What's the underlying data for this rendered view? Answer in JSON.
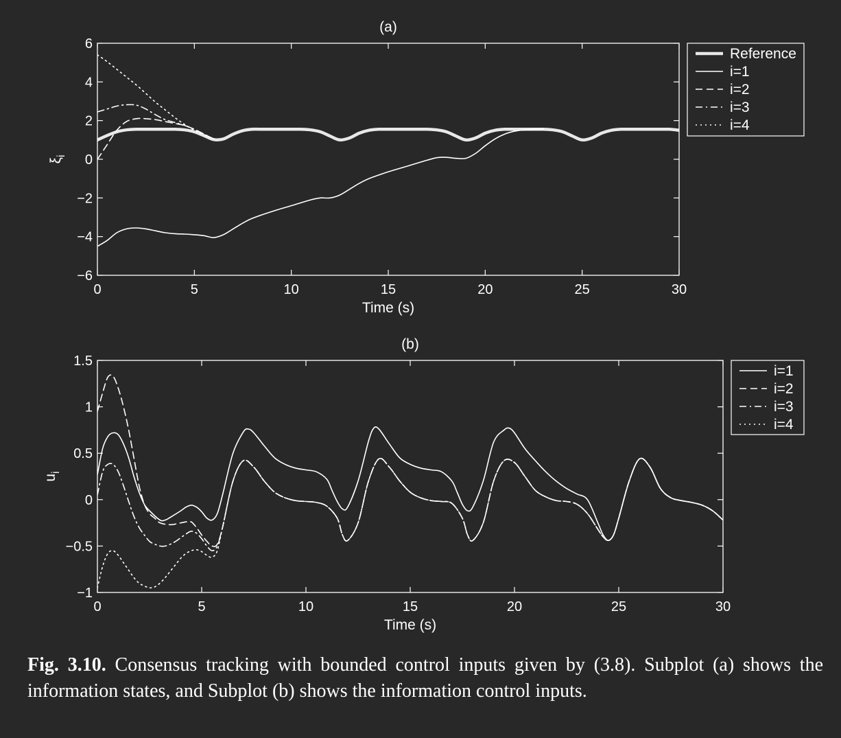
{
  "chart_data": [
    {
      "type": "line",
      "title": "(a)",
      "xlabel": "Time (s)",
      "ylabel": "ξ",
      "ylabel_sub": "i",
      "xlim": [
        0,
        30
      ],
      "ylim": [
        -6,
        6
      ],
      "xticks": [
        0,
        5,
        10,
        15,
        20,
        25,
        30
      ],
      "yticks": [
        -6,
        -4,
        -2,
        0,
        2,
        4,
        6
      ],
      "ytick_labels": [
        "−6",
        "−4",
        "−2",
        "0",
        "2",
        "4",
        "6"
      ],
      "grid": false,
      "legend": "top-right outside",
      "series": [
        {
          "name": "Reference",
          "style": "thick",
          "x": [
            0,
            0.5,
            1,
            1.5,
            2,
            2.5,
            3,
            3.5,
            4,
            4.5,
            5,
            5.5,
            6,
            6.5,
            7,
            7.5,
            8,
            8.5,
            9,
            9.5,
            10,
            10.5,
            11,
            11.5,
            12,
            12.5,
            13,
            13.5,
            14,
            14.5,
            15,
            15.5,
            16,
            16.5,
            17,
            17.5,
            18,
            18.5,
            19,
            19.5,
            20,
            20.5,
            21,
            21.5,
            22,
            22.5,
            23,
            23.5,
            24,
            24.5,
            25,
            25.5,
            26,
            26.5,
            27,
            27.5,
            28,
            28.5,
            29,
            29.5,
            30
          ],
          "y": [
            1.0,
            1.23,
            1.42,
            1.52,
            1.55,
            1.55,
            1.55,
            1.55,
            1.55,
            1.52,
            1.42,
            1.22,
            1.02,
            1.05,
            1.3,
            1.48,
            1.55,
            1.55,
            1.55,
            1.55,
            1.55,
            1.55,
            1.52,
            1.42,
            1.2,
            1.0,
            1.1,
            1.35,
            1.5,
            1.55,
            1.55,
            1.55,
            1.55,
            1.55,
            1.55,
            1.52,
            1.42,
            1.2,
            1.0,
            1.1,
            1.35,
            1.5,
            1.55,
            1.55,
            1.55,
            1.55,
            1.55,
            1.52,
            1.42,
            1.2,
            1.0,
            1.1,
            1.35,
            1.5,
            1.55,
            1.55,
            1.55,
            1.55,
            1.55,
            1.55,
            1.5
          ]
        },
        {
          "name": "i=1",
          "style": "solid",
          "x": [
            0,
            0.5,
            1,
            1.5,
            2,
            2.5,
            3,
            3.5,
            4,
            4.5,
            5,
            5.5,
            6,
            6.5,
            7,
            7.5,
            8,
            9,
            10,
            11,
            11.5,
            12,
            12.5,
            13,
            13.5,
            14,
            15,
            16,
            17,
            17.5,
            18,
            18.5,
            19,
            19.5,
            20,
            20.5,
            21,
            21.5,
            22,
            22.5,
            23
          ],
          "y": [
            -4.5,
            -4.2,
            -3.8,
            -3.6,
            -3.55,
            -3.6,
            -3.7,
            -3.8,
            -3.85,
            -3.87,
            -3.9,
            -3.95,
            -4.05,
            -3.9,
            -3.6,
            -3.3,
            -3.05,
            -2.7,
            -2.4,
            -2.1,
            -2.0,
            -2.0,
            -1.85,
            -1.55,
            -1.25,
            -1.0,
            -0.65,
            -0.35,
            -0.05,
            0.08,
            0.1,
            0.05,
            0.05,
            0.3,
            0.7,
            1.05,
            1.3,
            1.45,
            1.52,
            1.55,
            1.55
          ]
        },
        {
          "name": "i=2",
          "style": "dashed",
          "x": [
            0,
            0.5,
            1,
            1.5,
            2,
            2.5,
            3,
            3.5,
            4,
            4.5,
            5,
            5.5,
            6
          ],
          "y": [
            0.0,
            0.75,
            1.5,
            1.95,
            2.1,
            2.1,
            2.05,
            1.95,
            1.85,
            1.75,
            1.55,
            1.3,
            1.05
          ]
        },
        {
          "name": "i=3",
          "style": "dashdot",
          "x": [
            0,
            0.5,
            1,
            1.5,
            2,
            2.5,
            3,
            3.5,
            4,
            4.5,
            5,
            5.5,
            6
          ],
          "y": [
            2.45,
            2.6,
            2.75,
            2.82,
            2.8,
            2.6,
            2.3,
            2.05,
            1.9,
            1.75,
            1.55,
            1.3,
            1.05
          ]
        },
        {
          "name": "i=4",
          "style": "dotted",
          "x": [
            0,
            0.5,
            1,
            1.5,
            2,
            2.5,
            3,
            3.5,
            4,
            4.5,
            5,
            5.5,
            6
          ],
          "y": [
            5.4,
            5.05,
            4.65,
            4.25,
            3.85,
            3.4,
            2.95,
            2.55,
            2.15,
            1.8,
            1.5,
            1.25,
            1.05
          ]
        }
      ]
    },
    {
      "type": "line",
      "title": "(b)",
      "xlabel": "Time (s)",
      "ylabel": "u",
      "ylabel_sub": "i",
      "xlim": [
        0,
        30
      ],
      "ylim": [
        -1,
        1.5
      ],
      "xticks": [
        0,
        5,
        10,
        15,
        20,
        25,
        30
      ],
      "yticks": [
        -1,
        -0.5,
        0,
        0.5,
        1,
        1.5
      ],
      "ytick_labels": [
        "−1",
        "−0.5",
        "0",
        "0.5",
        "1",
        "1.5"
      ],
      "grid": false,
      "legend": "top-right outside",
      "series": [
        {
          "name": "i=1",
          "style": "solid",
          "x": [
            0,
            0.25,
            0.5,
            0.75,
            1,
            1.25,
            1.5,
            1.75,
            2,
            2.25,
            2.5,
            3,
            3.25,
            3.5,
            4,
            4.25,
            4.5,
            4.75,
            5,
            5.25,
            5.5,
            5.75,
            6,
            6.5,
            7,
            7.25,
            7.5,
            8,
            8.5,
            9,
            9.5,
            10,
            10.5,
            11,
            11.25,
            11.5,
            11.75,
            12,
            12.5,
            13,
            13.25,
            13.5,
            14,
            14.5,
            15,
            15.5,
            16,
            16.5,
            17,
            17.25,
            17.5,
            17.75,
            18,
            18.5,
            19,
            19.5,
            19.75,
            20,
            20.5,
            21,
            21.5,
            22,
            22.5,
            23,
            23.5,
            24,
            24.25,
            24.5,
            24.75,
            25,
            25.5,
            26,
            26.5,
            27,
            27.5,
            28,
            28.5,
            29,
            29.5,
            30
          ],
          "y": [
            0.27,
            0.55,
            0.68,
            0.72,
            0.7,
            0.6,
            0.45,
            0.25,
            0.08,
            -0.05,
            -0.12,
            -0.22,
            -0.22,
            -0.19,
            -0.12,
            -0.08,
            -0.06,
            -0.08,
            -0.13,
            -0.2,
            -0.22,
            -0.15,
            0.05,
            0.5,
            0.73,
            0.76,
            0.72,
            0.58,
            0.45,
            0.38,
            0.34,
            0.32,
            0.3,
            0.22,
            0.1,
            -0.02,
            -0.1,
            -0.08,
            0.2,
            0.63,
            0.77,
            0.76,
            0.6,
            0.45,
            0.38,
            0.34,
            0.32,
            0.3,
            0.2,
            0.08,
            -0.05,
            -0.12,
            -0.08,
            0.2,
            0.62,
            0.75,
            0.77,
            0.72,
            0.55,
            0.42,
            0.3,
            0.2,
            0.12,
            0.06,
            0.0,
            -0.25,
            -0.38,
            -0.44,
            -0.38,
            -0.2,
            0.2,
            0.44,
            0.35,
            0.12,
            0.02,
            -0.01,
            -0.03,
            -0.06,
            -0.12,
            -0.22
          ]
        },
        {
          "name": "i=2",
          "style": "dashed",
          "x": [
            0,
            0.25,
            0.5,
            0.75,
            1,
            1.25,
            1.5,
            1.75,
            2,
            2.25,
            2.5,
            2.75,
            3,
            3.5,
            4,
            4.25,
            4.5,
            4.75,
            5,
            5.25,
            5.5,
            5.75,
            6,
            6.5,
            7,
            7.5,
            8,
            8.5,
            9,
            9.5,
            10,
            10.5,
            11,
            11.5,
            11.75,
            12,
            12.5,
            13,
            13.5,
            14,
            14.5,
            15,
            15.5,
            16,
            16.5,
            17,
            17.5,
            17.75,
            18,
            18.5,
            19,
            19.5,
            20,
            20.5,
            21,
            21.5,
            22,
            22.5,
            23,
            23.5,
            24,
            24.25,
            24.5,
            24.75,
            25,
            25.5,
            26,
            26.5,
            27,
            27.5,
            28,
            28.5,
            29,
            29.5,
            30
          ],
          "y": [
            0.95,
            1.15,
            1.32,
            1.33,
            1.2,
            1.0,
            0.75,
            0.45,
            0.15,
            -0.05,
            -0.15,
            -0.2,
            -0.25,
            -0.27,
            -0.25,
            -0.24,
            -0.24,
            -0.3,
            -0.38,
            -0.45,
            -0.5,
            -0.48,
            -0.3,
            0.2,
            0.42,
            0.35,
            0.2,
            0.08,
            0.02,
            -0.01,
            -0.02,
            -0.03,
            -0.07,
            -0.2,
            -0.38,
            -0.44,
            -0.25,
            0.2,
            0.44,
            0.35,
            0.2,
            0.08,
            0.02,
            -0.01,
            -0.02,
            -0.04,
            -0.2,
            -0.38,
            -0.44,
            -0.25,
            0.2,
            0.42,
            0.4,
            0.25,
            0.1,
            0.03,
            -0.01,
            -0.02,
            -0.05,
            -0.15,
            -0.32,
            -0.4,
            -0.44,
            -0.38,
            -0.2,
            0.2,
            0.44,
            0.35,
            0.12,
            0.02,
            -0.01,
            -0.03,
            -0.06,
            -0.12,
            -0.22
          ]
        },
        {
          "name": "i=3",
          "style": "dashdot",
          "x": [
            0,
            0.25,
            0.5,
            0.75,
            1,
            1.25,
            1.5,
            1.75,
            2,
            2.25,
            2.5,
            2.75,
            3,
            3.25,
            3.5,
            3.75,
            4,
            4.25,
            4.5,
            4.75,
            5,
            5.25,
            5.5,
            5.75,
            6,
            6.5,
            7,
            7.5,
            8,
            8.5,
            9,
            9.5,
            10,
            10.5,
            11,
            11.5,
            11.75,
            12,
            12.5,
            13,
            13.5,
            14,
            14.5,
            15,
            15.5,
            16,
            16.5,
            17,
            17.5,
            17.75,
            18,
            18.5,
            19,
            19.5,
            20,
            20.5,
            21,
            21.5,
            22,
            22.5,
            23,
            23.5,
            24,
            24.25,
            24.5,
            24.75,
            25,
            25.5,
            26,
            26.5,
            27,
            27.5,
            28,
            28.5,
            29,
            29.5,
            30
          ],
          "y": [
            0.05,
            0.3,
            0.38,
            0.38,
            0.3,
            0.15,
            -0.02,
            -0.18,
            -0.3,
            -0.38,
            -0.45,
            -0.48,
            -0.5,
            -0.5,
            -0.48,
            -0.45,
            -0.41,
            -0.37,
            -0.34,
            -0.36,
            -0.42,
            -0.5,
            -0.55,
            -0.5,
            -0.3,
            0.2,
            0.42,
            0.35,
            0.2,
            0.08,
            0.02,
            -0.01,
            -0.02,
            -0.03,
            -0.07,
            -0.2,
            -0.38,
            -0.44,
            -0.25,
            0.2,
            0.44,
            0.35,
            0.2,
            0.08,
            0.02,
            -0.01,
            -0.02,
            -0.04,
            -0.2,
            -0.38,
            -0.44,
            -0.25,
            0.2,
            0.42,
            0.4,
            0.25,
            0.1,
            0.03,
            -0.01,
            -0.02,
            -0.05,
            -0.15,
            -0.32,
            -0.4,
            -0.44,
            -0.38,
            -0.2,
            0.2,
            0.44,
            0.35,
            0.12,
            0.02,
            -0.01,
            -0.03,
            -0.06,
            -0.12,
            -0.22
          ]
        },
        {
          "name": "i=4",
          "style": "dotted",
          "x": [
            0,
            0.25,
            0.5,
            0.75,
            1,
            1.25,
            1.5,
            1.75,
            2,
            2.25,
            2.5,
            2.75,
            3,
            3.25,
            3.5,
            3.75,
            4,
            4.25,
            4.5,
            4.75,
            5,
            5.25,
            5.5,
            5.75,
            6,
            6.5,
            7,
            7.5,
            8,
            8.5,
            9,
            9.5,
            10,
            10.5,
            11,
            11.5,
            11.75,
            12,
            12.5,
            13,
            13.5,
            14,
            14.5,
            15,
            15.5,
            16,
            16.5,
            17,
            17.5,
            17.75,
            18,
            18.5,
            19,
            19.5,
            20,
            20.5,
            21,
            21.5,
            22,
            22.5,
            23,
            23.5,
            24,
            24.25,
            24.5,
            24.75,
            25,
            25.5,
            26,
            26.5,
            27,
            27.5,
            28,
            28.5,
            29,
            29.5,
            30
          ],
          "y": [
            -0.95,
            -0.72,
            -0.58,
            -0.55,
            -0.6,
            -0.68,
            -0.76,
            -0.84,
            -0.9,
            -0.93,
            -0.95,
            -0.94,
            -0.9,
            -0.84,
            -0.77,
            -0.7,
            -0.63,
            -0.58,
            -0.55,
            -0.54,
            -0.56,
            -0.6,
            -0.62,
            -0.55,
            -0.3,
            0.2,
            0.42,
            0.35,
            0.2,
            0.08,
            0.02,
            -0.01,
            -0.02,
            -0.03,
            -0.07,
            -0.2,
            -0.38,
            -0.44,
            -0.25,
            0.2,
            0.44,
            0.35,
            0.2,
            0.08,
            0.02,
            -0.01,
            -0.02,
            -0.04,
            -0.2,
            -0.38,
            -0.44,
            -0.25,
            0.2,
            0.42,
            0.4,
            0.25,
            0.1,
            0.03,
            -0.01,
            -0.02,
            -0.05,
            -0.15,
            -0.32,
            -0.4,
            -0.44,
            -0.38,
            -0.2,
            0.2,
            0.44,
            0.35,
            0.12,
            0.02,
            -0.01,
            -0.03,
            -0.06,
            -0.12,
            -0.22
          ]
        }
      ]
    }
  ],
  "caption": {
    "label": "Fig. 3.10.",
    "text": "Consensus tracking with bounded control inputs given by (3.8). Subplot (a) shows the information states, and Subplot (b) shows the information control inputs."
  }
}
